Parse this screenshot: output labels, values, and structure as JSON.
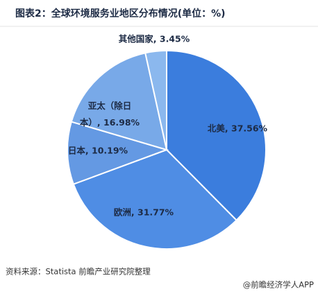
{
  "chart_data": {
    "type": "pie",
    "title": "图表2：全球环境服务业地区分布情况(单位：%)",
    "categories": [
      "北美",
      "欧洲",
      "日本",
      "亚太（除日本）",
      "其他国家"
    ],
    "values": [
      37.56,
      31.77,
      10.19,
      16.98,
      3.45
    ],
    "value_labels": [
      "北美, 37.56%",
      "欧洲, 31.77%",
      "日本, 10.19%",
      "亚太（除日本）, 16.98%",
      "其他国家, 3.45%"
    ],
    "colors": [
      "#3b7ddd",
      "#4f8de4",
      "#6499e3",
      "#78a9e8",
      "#8bb8ee"
    ],
    "source": "资料来源：Statista 前瞻产业研究院整理",
    "credit": "@前瞻经济学人APP"
  }
}
